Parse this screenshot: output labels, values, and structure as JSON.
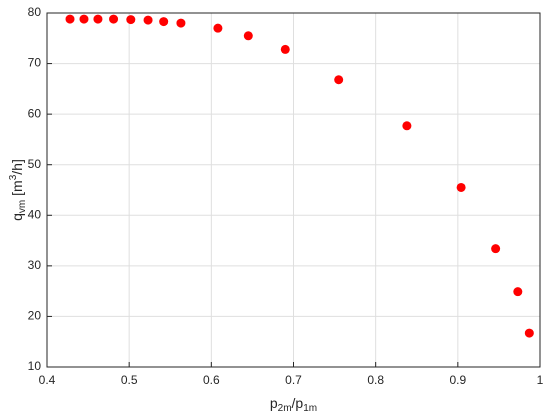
{
  "chart_data": {
    "type": "scatter",
    "xlabel": [
      "p",
      "2m",
      "/p",
      "1m"
    ],
    "ylabel": [
      "q",
      "vm",
      " [m",
      "3",
      "/h]"
    ],
    "x": [
      0.428,
      0.445,
      0.462,
      0.481,
      0.502,
      0.523,
      0.542,
      0.563,
      0.608,
      0.645,
      0.69,
      0.755,
      0.838,
      0.904,
      0.946,
      0.973,
      0.987
    ],
    "values": [
      78.8,
      78.8,
      78.8,
      78.8,
      78.7,
      78.6,
      78.3,
      78,
      77,
      75.5,
      72.8,
      66.8,
      57.7,
      45.5,
      33.4,
      24.9,
      16.7
    ],
    "color": "#ff0000",
    "xlim": [
      0.4,
      1
    ],
    "xticks": [
      0.4,
      0.5,
      0.6,
      0.7,
      0.8,
      0.9,
      1
    ],
    "ylim": [
      10,
      80
    ],
    "yticks": [
      10,
      20,
      30,
      40,
      50,
      60,
      70,
      80
    ],
    "grid": true
  }
}
